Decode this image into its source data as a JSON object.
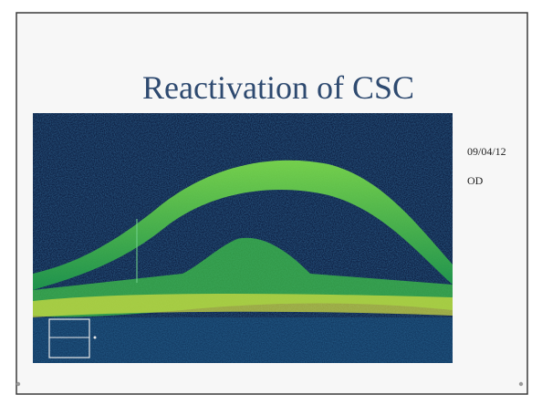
{
  "slide": {
    "title": "Reactivation of CSC",
    "notes": [
      "09/04/12",
      "OD"
    ]
  }
}
